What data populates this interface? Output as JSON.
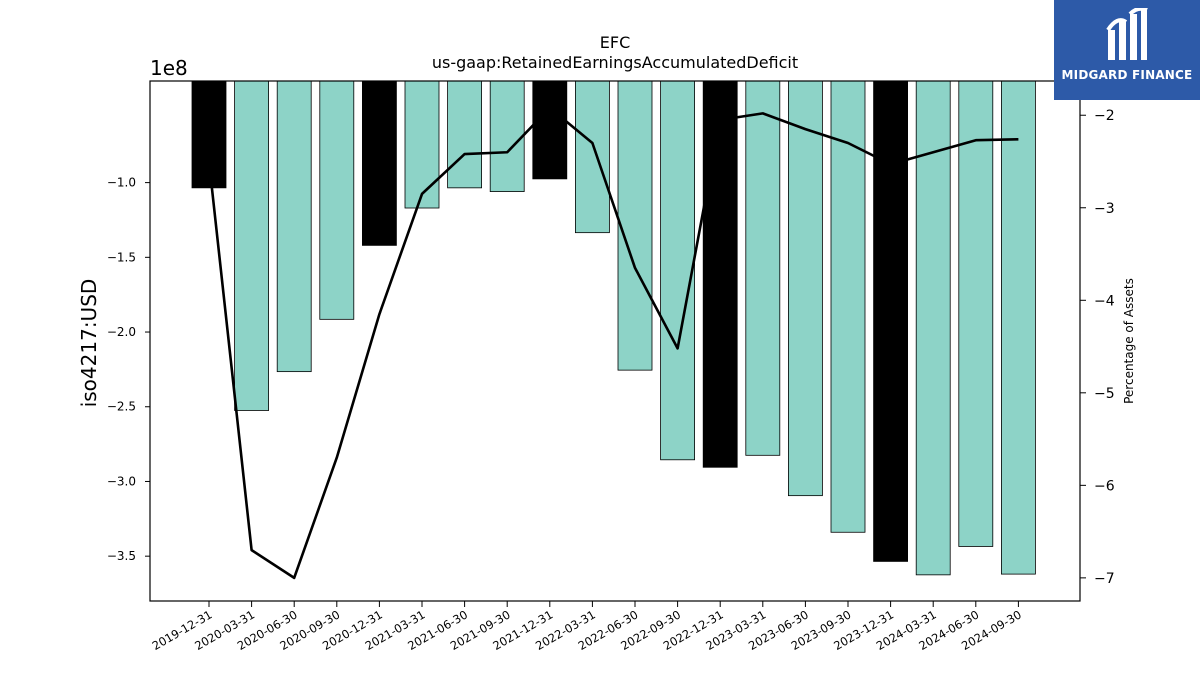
{
  "chart_data": {
    "type": "bar",
    "title": "EFC",
    "subtitle": "us-gaap:RetainedEarningsAccumulatedDeficit",
    "ylabel": "iso4217:USD",
    "y_offset_label": "1e8",
    "y2label": "Percentage of Assets",
    "categories": [
      "2019-12-31",
      "2020-03-31",
      "2020-06-30",
      "2020-09-30",
      "2020-12-31",
      "2021-03-31",
      "2021-06-30",
      "2021-09-30",
      "2021-12-31",
      "2022-03-31",
      "2022-06-30",
      "2022-09-30",
      "2022-12-31",
      "2023-03-31",
      "2023-06-30",
      "2023-09-30",
      "2023-12-31",
      "2024-03-31",
      "2024-06-30",
      "2024-09-30"
    ],
    "series": [
      {
        "values": [
          -103500000,
          -252500000,
          -226500000,
          -191500000,
          -142000000,
          -117000000,
          -103500000,
          -106000000,
          -97500000,
          -133500000,
          -225500000,
          -285500000,
          -290500000,
          -282500000,
          -309500000,
          -334000000,
          -353500000,
          -362500000,
          -343500000,
          -362000000
        ],
        "annual_flags": [
          true,
          false,
          false,
          false,
          true,
          false,
          false,
          false,
          true,
          false,
          false,
          false,
          true,
          false,
          false,
          false,
          true,
          false,
          false,
          false
        ]
      },
      {
        "axis": "right",
        "values": [
          -2.5,
          -6.7,
          -7.0,
          -5.7,
          -4.15,
          -2.85,
          -2.42,
          -2.4,
          -1.92,
          -2.3,
          -3.65,
          -4.52,
          -2.05,
          -1.98,
          -2.15,
          -2.3,
          -2.53,
          -2.4,
          -2.27,
          -2.26
        ]
      }
    ],
    "ylim": [
      -380000000,
      -32000000
    ],
    "yticks": [
      -100000000,
      -150000000,
      -200000000,
      -250000000,
      -300000000,
      -350000000
    ],
    "ytick_labels": [
      "−1.0",
      "−1.5",
      "−2.0",
      "−2.5",
      "−3.0",
      "−3.5"
    ],
    "y2lim": [
      -7.25,
      -1.63
    ],
    "y2ticks": [
      -2,
      -3,
      -4,
      -5,
      -6,
      -7
    ],
    "y2tick_labels": [
      "−2",
      "−3",
      "−4",
      "−5",
      "−6",
      "−7"
    ],
    "colors": {
      "annual_bar": "#000000",
      "quarter_bar": "#8dd3c7",
      "line": "#000000"
    },
    "grid": false,
    "legend": "none"
  },
  "logo": {
    "text": "MIDGARD FINANCE",
    "background": "#2d5aa8"
  }
}
